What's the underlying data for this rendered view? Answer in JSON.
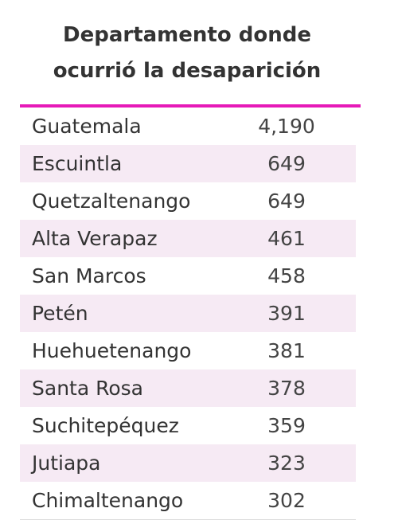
{
  "header": {
    "title": [
      "Departamento donde",
      "ocurrió la desaparición"
    ]
  },
  "table": {
    "rows": [
      [
        "Guatemala",
        "4,190"
      ],
      [
        "Escuintla",
        "649"
      ],
      [
        "Quetzaltenango",
        "649"
      ],
      [
        "Alta Verapaz",
        "461"
      ],
      [
        "San Marcos",
        "458"
      ],
      [
        "Petén",
        "391"
      ],
      [
        "Huehuetenango",
        "381"
      ],
      [
        "Santa Rosa",
        "378"
      ],
      [
        "Suchitepéquez",
        "359"
      ],
      [
        "Jutiapa",
        "323"
      ],
      [
        "Chimaltenango",
        "302"
      ]
    ]
  }
}
